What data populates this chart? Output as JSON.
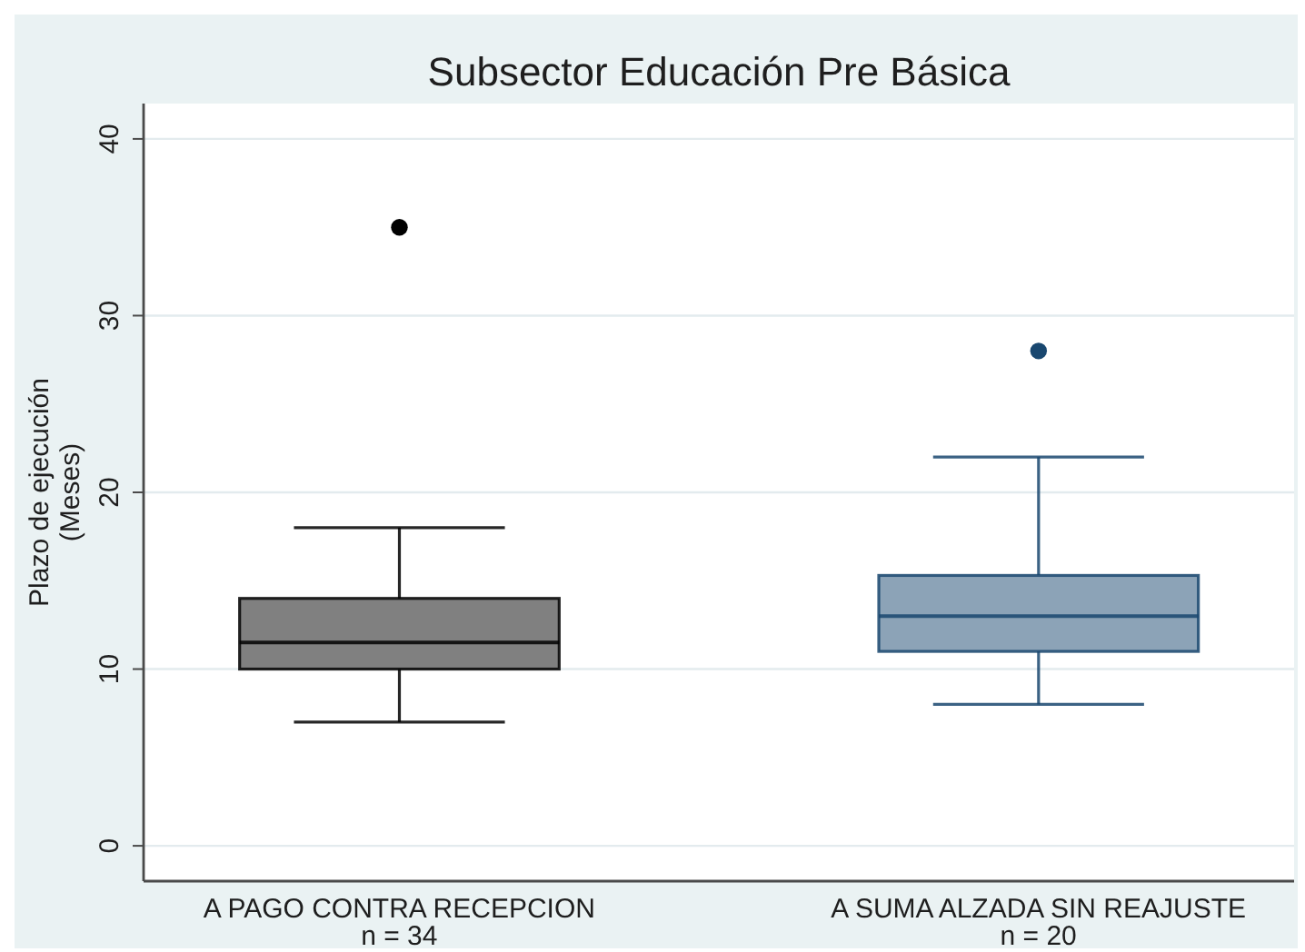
{
  "chart_data": {
    "type": "box",
    "title": "Subsector Educación Pre Básica",
    "ylabel": "Plazo de ejecución\n(Meses)",
    "categories": [
      "A PAGO CONTRA RECEPCION\nn = 34",
      "A SUMA ALZADA SIN REAJUSTE\nn = 20"
    ],
    "boxes": [
      {
        "low": 7,
        "q1": 10,
        "median": 11.5,
        "q3": 14,
        "high": 18,
        "outliers": [
          35
        ]
      },
      {
        "low": 8,
        "q1": 11,
        "median": 13,
        "q3": 15.3,
        "high": 22,
        "outliers": [
          28
        ]
      }
    ],
    "colors": [
      "#808080",
      "#8ca3b7"
    ],
    "ylim": [
      -2,
      42
    ],
    "yticks": [
      0,
      10,
      20,
      30,
      40
    ],
    "grid": "y"
  }
}
